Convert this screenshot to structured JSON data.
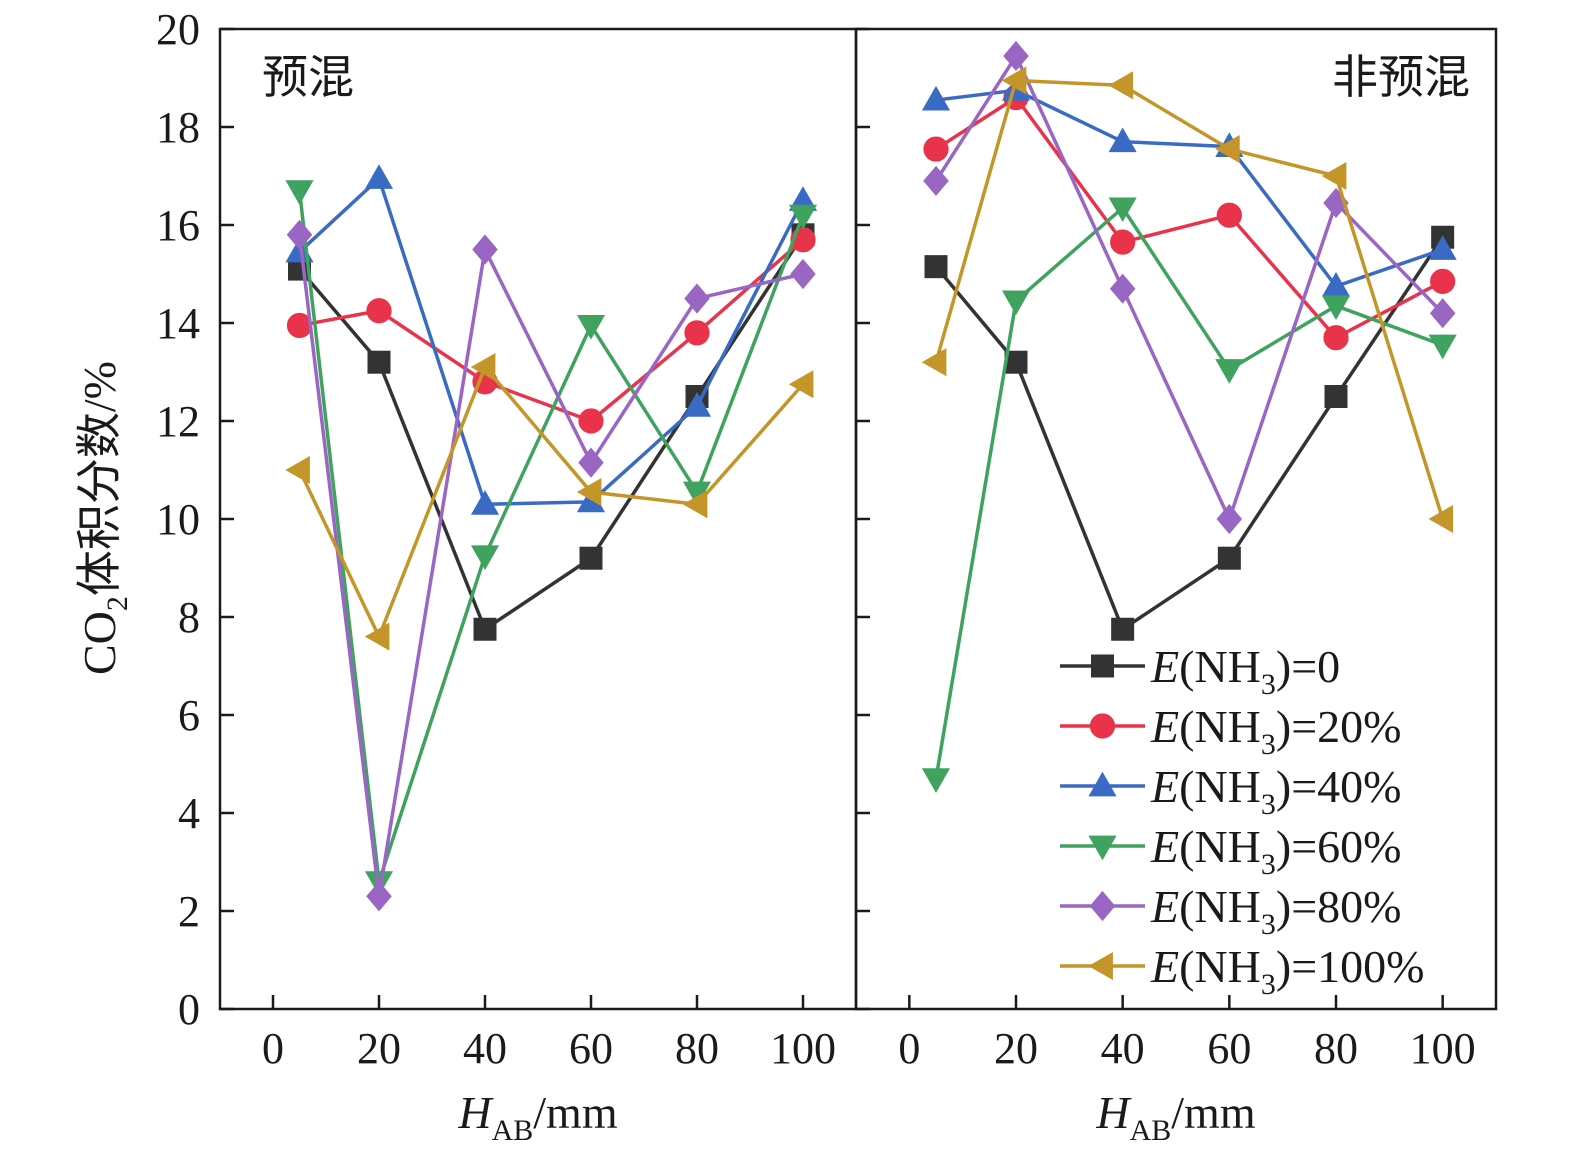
{
  "chart_data": {
    "type": "line",
    "ylabel": "CO2体积分数/%",
    "xlabel": "HAB/mm",
    "ylim": [
      0,
      20
    ],
    "xlim": [
      -10,
      110
    ],
    "yticks": [
      0,
      2,
      4,
      6,
      8,
      10,
      12,
      14,
      16,
      18,
      20
    ],
    "xticks": [
      0,
      20,
      40,
      60,
      80,
      100
    ],
    "x": [
      5,
      20,
      40,
      60,
      80,
      100
    ],
    "legend_position": "bottom-right of right panel",
    "colors": [
      "#333333",
      "#e8334a",
      "#3a6bc4",
      "#3fa35f",
      "#9966c4",
      "#c4962a"
    ],
    "markers": [
      "square",
      "circle",
      "triangle-up",
      "triangle-down",
      "diamond",
      "triangle-left"
    ],
    "panels": [
      {
        "label": "预混",
        "series": [
          {
            "name": "E(NH3)=0",
            "values": [
              15.1,
              13.2,
              7.75,
              9.2,
              12.5,
              15.8
            ]
          },
          {
            "name": "E(NH3)=20%",
            "values": [
              13.95,
              14.25,
              12.8,
              12.0,
              13.8,
              15.7
            ]
          },
          {
            "name": "E(NH3)=40%",
            "values": [
              15.45,
              16.95,
              10.3,
              10.35,
              12.3,
              16.5
            ]
          },
          {
            "name": "E(NH3)=60%",
            "values": [
              16.7,
              2.6,
              9.25,
              13.95,
              10.55,
              16.2
            ]
          },
          {
            "name": "E(NH3)=80%",
            "values": [
              15.8,
              2.3,
              15.5,
              11.15,
              14.5,
              15.0
            ]
          },
          {
            "name": "E(NH3)=100%",
            "values": [
              11.0,
              7.6,
              13.1,
              10.55,
              10.3,
              12.75
            ]
          }
        ]
      },
      {
        "label": "非预混",
        "series": [
          {
            "name": "E(NH3)=0",
            "values": [
              15.15,
              13.2,
              7.75,
              9.2,
              12.5,
              15.75
            ]
          },
          {
            "name": "E(NH3)=20%",
            "values": [
              17.55,
              18.6,
              15.65,
              16.2,
              13.7,
              14.85
            ]
          },
          {
            "name": "E(NH3)=40%",
            "values": [
              18.55,
              18.75,
              17.7,
              17.6,
              14.75,
              15.5
            ]
          },
          {
            "name": "E(NH3)=60%",
            "values": [
              4.7,
              14.45,
              16.35,
              13.05,
              14.35,
              13.55
            ]
          },
          {
            "name": "E(NH3)=80%",
            "values": [
              16.9,
              19.45,
              14.7,
              10.0,
              16.45,
              14.2
            ]
          },
          {
            "name": "E(NH3)=100%",
            "values": [
              13.2,
              18.95,
              18.85,
              17.55,
              17.0,
              10.0
            ]
          }
        ]
      }
    ]
  },
  "text": {
    "ylabel_main": "CO",
    "ylabel_sub": "2",
    "ylabel_rest": "体积分数/%",
    "xlabel_main": "H",
    "xlabel_sub": "AB",
    "xlabel_rest": "/mm",
    "legend_prefix": "E",
    "legend_mid": "(NH",
    "legend_sub": "3",
    "legend_values": [
      ")=0",
      ")=20%",
      ")=40%",
      ")=60%",
      ")=80%",
      ")=100%"
    ]
  }
}
